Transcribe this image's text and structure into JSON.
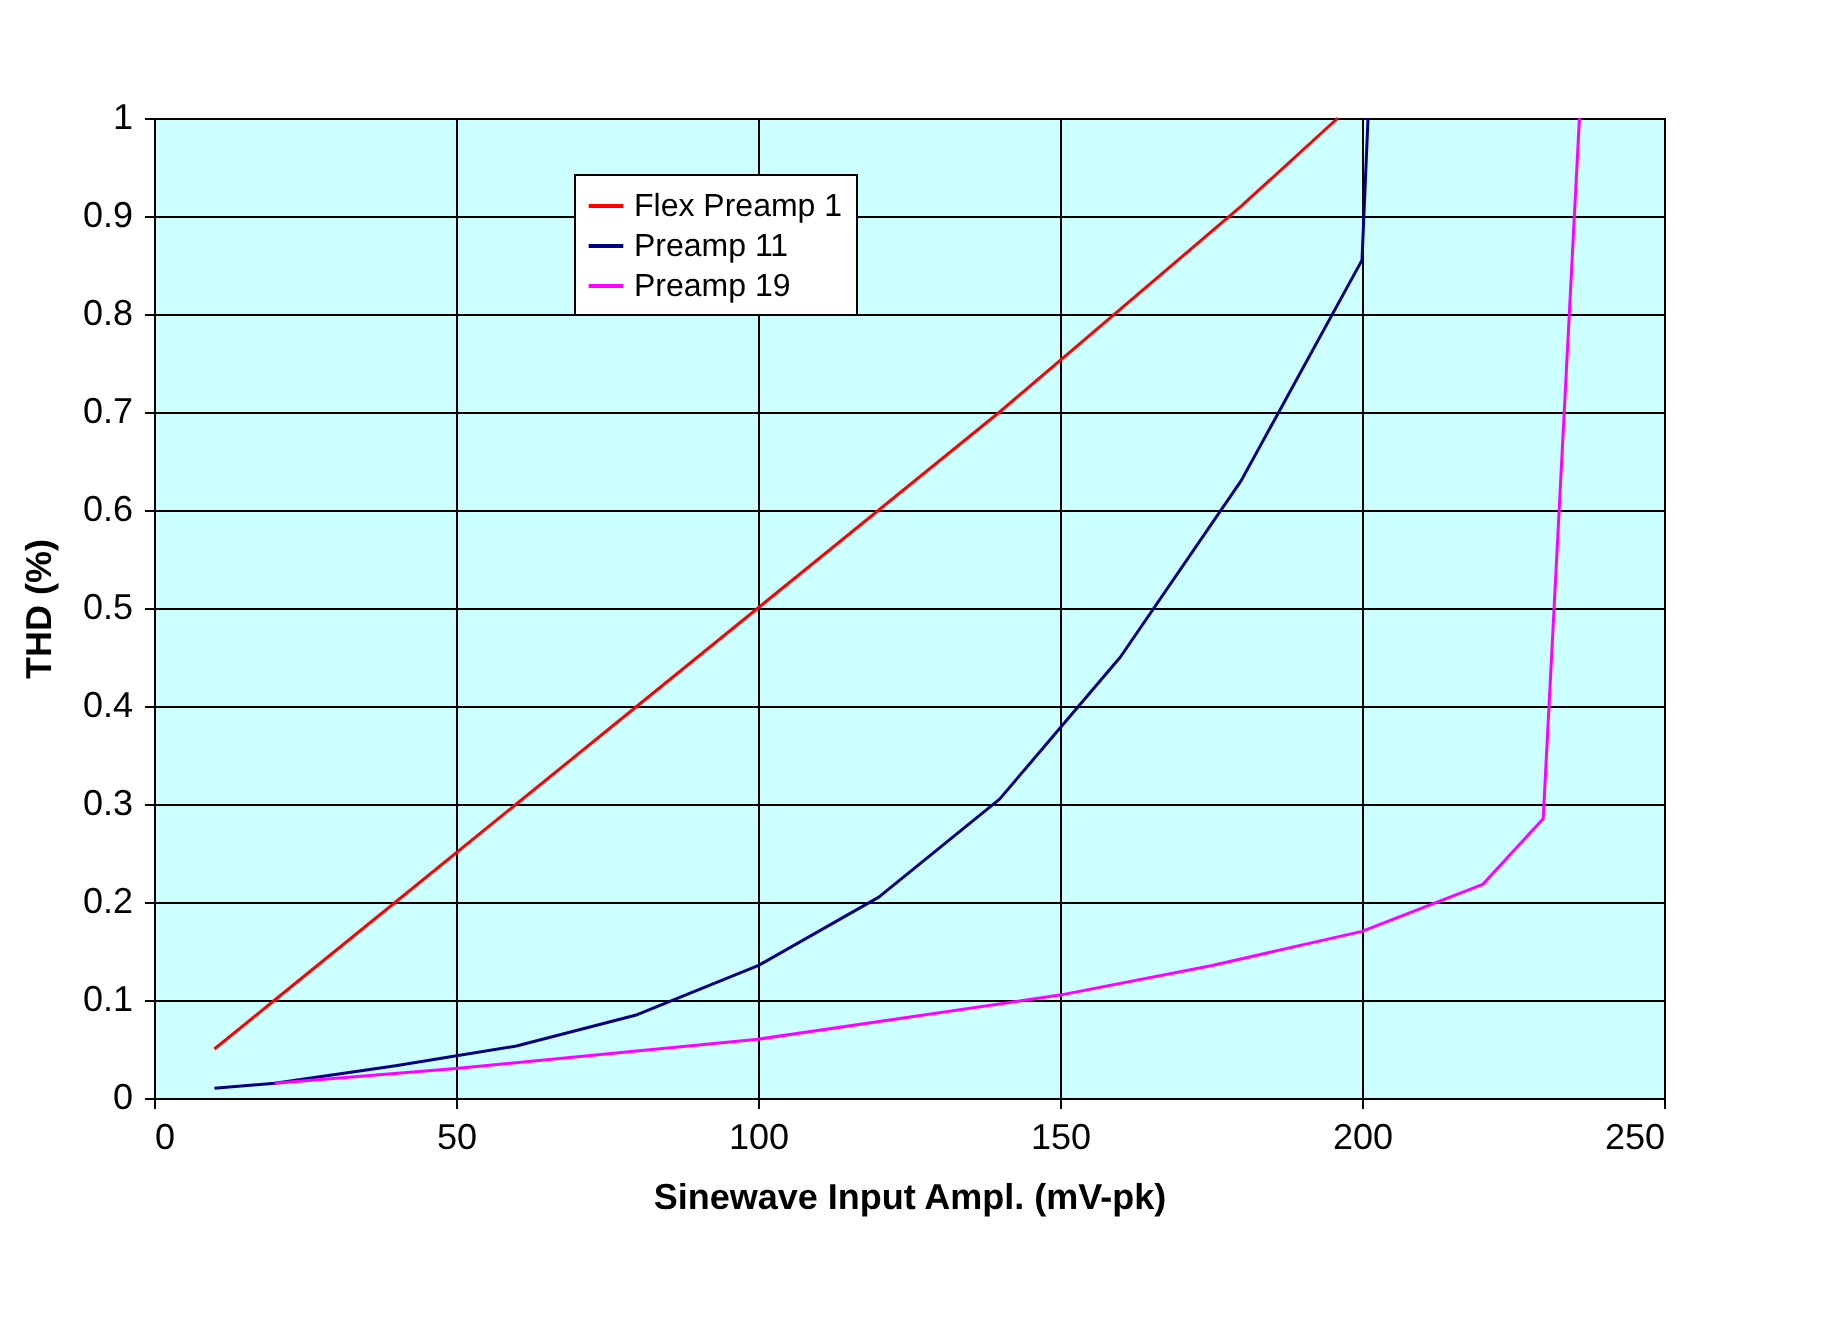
{
  "chart_data": {
    "type": "line",
    "xlabel": "Sinewave Input Ampl. (mV-pk)",
    "ylabel": "THD (%)",
    "xlim": [
      0,
      250
    ],
    "xticks": [
      0,
      50,
      100,
      150,
      200,
      250
    ],
    "ylim": [
      0,
      1
    ],
    "yticks": [
      {
        "value": 0,
        "label": "0"
      },
      0.1,
      0.2,
      0.3,
      0.4,
      0.5,
      0.6,
      0.7,
      0.8,
      0.9,
      {
        "value": 1,
        "label": "1"
      }
    ],
    "grid": true,
    "legend": "top left",
    "marker": "none",
    "line_style": "solid",
    "series": [
      {
        "name": "Flex Preamp 1",
        "color": "#ff0000",
        "x": [
          10,
          20,
          40,
          60,
          80,
          100,
          120,
          140,
          160,
          180,
          196
        ],
        "values": [
          0.05,
          0.1,
          0.2,
          0.3,
          0.4,
          0.5,
          0.6,
          0.7,
          0.805,
          0.91,
          1.0
        ]
      },
      {
        "name": "Preamp 11",
        "color": "#000080",
        "x": [
          10,
          20,
          40,
          60,
          80,
          100,
          120,
          140,
          160,
          180,
          200,
          201
        ],
        "values": [
          0.01,
          0.015,
          0.033,
          0.053,
          0.085,
          0.135,
          0.205,
          0.305,
          0.45,
          0.63,
          0.855,
          1.0
        ]
      },
      {
        "name": "Preamp 19",
        "color": "#ff00ff",
        "x": [
          20,
          50,
          100,
          150,
          175,
          200,
          220,
          230,
          236
        ],
        "values": [
          0.015,
          0.03,
          0.06,
          0.105,
          0.135,
          0.17,
          0.218,
          0.285,
          1.0
        ]
      }
    ]
  }
}
